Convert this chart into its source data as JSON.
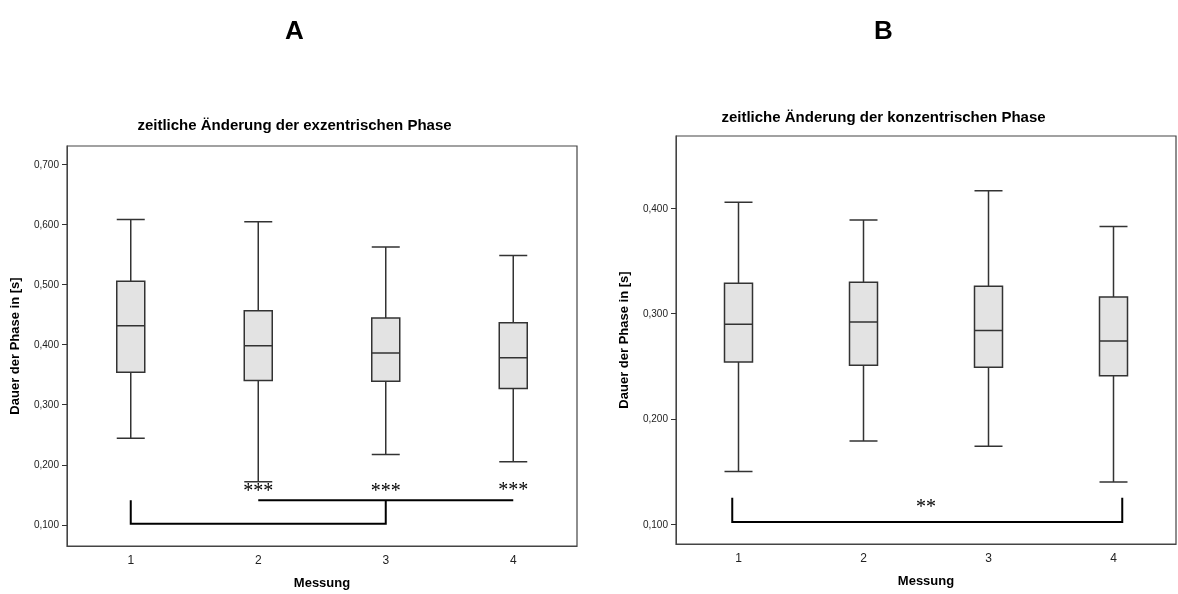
{
  "chart_data": [
    {
      "type": "box",
      "title": "zeitliche Änderung der exzentrischen Phase",
      "xlabel": "Messung",
      "ylabel": "Dauer der Phase in [s]",
      "categories": [
        "1",
        "2",
        "3",
        "4"
      ],
      "color": "#e3e3e3",
      "boxes": [
        {
          "low": 0.244,
          "q1": 0.354,
          "median": 0.431,
          "q3": 0.505,
          "high": 0.608
        },
        {
          "low": 0.172,
          "q1": 0.34,
          "median": 0.398,
          "q3": 0.456,
          "high": 0.604
        },
        {
          "low": 0.217,
          "q1": 0.339,
          "median": 0.386,
          "q3": 0.444,
          "high": 0.562
        },
        {
          "low": 0.205,
          "q1": 0.327,
          "median": 0.378,
          "q3": 0.436,
          "high": 0.548
        }
      ],
      "ylim": [
        0.065,
        0.73
      ],
      "yticks": [
        {
          "value": 0.1,
          "label": "0,100"
        },
        {
          "value": 0.2,
          "label": "0,200"
        },
        {
          "value": 0.3,
          "label": "0,300"
        },
        {
          "value": 0.4,
          "label": "0,400"
        },
        {
          "value": 0.5,
          "label": "0,500"
        },
        {
          "value": 0.6,
          "label": "0,600"
        },
        {
          "value": 0.7,
          "label": "0,700"
        }
      ],
      "annotations": [
        "A",
        "***",
        "***",
        "***"
      ]
    },
    {
      "type": "box",
      "title": "zeitliche Änderung der konzentrischen Phase",
      "xlabel": "Messung",
      "ylabel": "Dauer der Phase in [s]",
      "categories": [
        "1",
        "2",
        "3",
        "4"
      ],
      "color": "#e3e3e3",
      "boxes": [
        {
          "low": 0.15,
          "q1": 0.254,
          "median": 0.29,
          "q3": 0.329,
          "high": 0.406
        },
        {
          "low": 0.179,
          "q1": 0.251,
          "median": 0.292,
          "q3": 0.33,
          "high": 0.389
        },
        {
          "low": 0.174,
          "q1": 0.249,
          "median": 0.284,
          "q3": 0.326,
          "high": 0.417
        },
        {
          "low": 0.14,
          "q1": 0.241,
          "median": 0.274,
          "q3": 0.316,
          "high": 0.383
        }
      ],
      "ylim": [
        0.081,
        0.469
      ],
      "yticks": [
        {
          "value": 0.1,
          "label": "0,100"
        },
        {
          "value": 0.2,
          "label": "0,200"
        },
        {
          "value": 0.3,
          "label": "0,300"
        },
        {
          "value": 0.4,
          "label": "0,400"
        }
      ],
      "annotations": [
        "B",
        "**"
      ]
    }
  ]
}
